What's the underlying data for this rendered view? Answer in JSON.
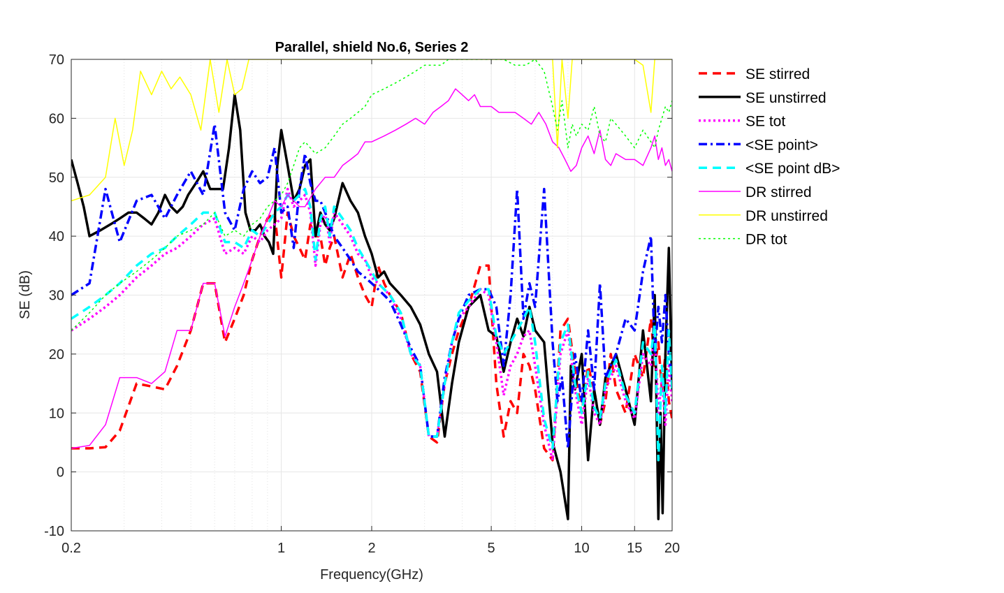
{
  "chart_data": {
    "type": "line",
    "title": "Parallel, shield No.6, Series 2",
    "xlabel": "Frequency(GHz)",
    "ylabel": "SE (dB)",
    "xscale": "log",
    "xlim": [
      0.2,
      20
    ],
    "ylim": [
      -10,
      70
    ],
    "xticks": [
      0.2,
      1,
      2,
      5,
      10,
      15,
      20
    ],
    "xtick_labels": [
      "0.2",
      "1",
      "2",
      "5",
      "10",
      "15",
      "20"
    ],
    "yticks": [
      -10,
      0,
      10,
      20,
      30,
      40,
      50,
      60,
      70
    ],
    "ytick_labels": [
      "-10",
      "0",
      "10",
      "20",
      "30",
      "40",
      "50",
      "60",
      "70"
    ],
    "grid": true,
    "legend_position": "outside-right",
    "series": [
      {
        "name": "SE stirred",
        "color": "#ff0000",
        "style": "dashed",
        "width": 3.5,
        "x": [
          0.2,
          0.23,
          0.26,
          0.29,
          0.33,
          0.37,
          0.41,
          0.45,
          0.5,
          0.55,
          0.6,
          0.65,
          0.7,
          0.75,
          0.8,
          0.85,
          0.9,
          0.95,
          1.0,
          1.05,
          1.1,
          1.15,
          1.2,
          1.25,
          1.3,
          1.35,
          1.4,
          1.45,
          1.5,
          1.6,
          1.7,
          1.8,
          1.9,
          2.0,
          2.1,
          2.2,
          2.3,
          2.5,
          2.7,
          2.9,
          3.1,
          3.3,
          3.5,
          3.7,
          3.9,
          4.2,
          4.6,
          4.9,
          5.2,
          5.5,
          5.8,
          6.1,
          6.4,
          6.7,
          7.0,
          7.5,
          8.0,
          8.5,
          9.0,
          9.5,
          10.0,
          10.5,
          11.0,
          11.5,
          12.0,
          12.5,
          13.0,
          14.0,
          15.0,
          16.0,
          17.0,
          17.5,
          18.0,
          18.5,
          19.0,
          19.5,
          20.0
        ],
        "y": [
          4,
          4,
          4.2,
          7,
          15,
          14.5,
          14,
          18,
          24,
          32,
          32,
          22,
          26,
          30,
          36,
          40,
          43,
          44,
          33,
          44,
          40,
          38,
          36,
          42,
          40,
          40,
          35,
          38,
          40,
          33,
          37,
          33,
          30,
          28,
          35,
          32,
          30,
          27,
          20,
          17,
          6,
          5,
          15,
          20,
          24,
          28,
          35,
          35,
          15,
          6,
          12,
          10,
          20,
          18,
          14,
          4,
          2,
          24,
          26,
          17,
          10,
          18,
          14,
          8,
          12,
          20,
          14,
          10,
          20,
          16,
          26,
          18,
          22,
          14,
          20,
          12,
          9
        ]
      },
      {
        "name": "SE unstirred",
        "color": "#000000",
        "style": "solid",
        "width": 3.5,
        "x": [
          0.2,
          0.21,
          0.22,
          0.23,
          0.25,
          0.27,
          0.29,
          0.31,
          0.33,
          0.35,
          0.37,
          0.39,
          0.41,
          0.43,
          0.45,
          0.47,
          0.49,
          0.52,
          0.55,
          0.58,
          0.61,
          0.64,
          0.67,
          0.7,
          0.73,
          0.76,
          0.79,
          0.82,
          0.85,
          0.88,
          0.91,
          0.94,
          0.97,
          1.0,
          1.05,
          1.1,
          1.15,
          1.2,
          1.25,
          1.3,
          1.35,
          1.4,
          1.45,
          1.5,
          1.6,
          1.7,
          1.8,
          1.9,
          2.0,
          2.1,
          2.2,
          2.3,
          2.5,
          2.7,
          2.9,
          3.1,
          3.3,
          3.5,
          3.7,
          3.9,
          4.2,
          4.6,
          4.9,
          5.2,
          5.5,
          5.8,
          6.1,
          6.4,
          6.7,
          7.0,
          7.5,
          8.0,
          8.5,
          9.0,
          9.2,
          9.5,
          10.0,
          10.5,
          11.0,
          11.5,
          12.0,
          13.0,
          14.0,
          15.0,
          16.0,
          17.0,
          17.5,
          18.0,
          18.3,
          18.6,
          19.0,
          19.5,
          20.0
        ],
        "y": [
          53,
          49,
          45,
          40,
          41,
          42,
          43,
          44,
          44,
          43,
          42,
          44,
          47,
          45,
          44,
          45,
          47,
          49,
          51,
          48,
          48,
          48,
          55,
          64,
          58,
          44,
          41,
          41,
          42,
          40,
          39,
          37,
          52,
          58,
          52,
          46,
          48,
          52,
          53,
          40,
          44,
          42,
          41,
          43,
          49,
          46,
          44,
          40,
          37,
          33,
          34,
          32,
          30,
          28,
          25,
          20,
          17,
          6,
          15,
          22,
          28,
          30,
          24,
          23,
          17,
          22,
          26,
          23,
          28,
          24,
          22,
          5,
          0,
          -8,
          18,
          14,
          20,
          2,
          14,
          8,
          16,
          20,
          14,
          8,
          24,
          12,
          30,
          -8,
          10,
          -7,
          20,
          38,
          14
        ]
      },
      {
        "name": "SE tot",
        "color": "#ff00ff",
        "style": "dotted",
        "width": 3.5,
        "x": [
          0.2,
          0.23,
          0.26,
          0.29,
          0.33,
          0.37,
          0.41,
          0.45,
          0.5,
          0.55,
          0.6,
          0.65,
          0.7,
          0.75,
          0.8,
          0.85,
          0.9,
          0.95,
          1.0,
          1.05,
          1.1,
          1.15,
          1.2,
          1.25,
          1.3,
          1.35,
          1.4,
          1.45,
          1.5,
          1.6,
          1.7,
          1.8,
          1.9,
          2.0,
          2.1,
          2.2,
          2.3,
          2.5,
          2.7,
          2.9,
          3.1,
          3.3,
          3.5,
          3.7,
          3.9,
          4.2,
          4.6,
          4.9,
          5.2,
          5.5,
          5.8,
          6.1,
          6.4,
          6.7,
          7.0,
          7.5,
          8.0,
          8.5,
          9.0,
          9.5,
          10.0,
          10.5,
          11.0,
          11.5,
          12.0,
          13.0,
          14.0,
          15.0,
          16.0,
          17.0,
          17.5,
          18.0,
          18.5,
          19.0,
          19.5,
          20.0
        ],
        "y": [
          24,
          26,
          28,
          30,
          33,
          35,
          37,
          38,
          40,
          42,
          43,
          37,
          38,
          37,
          40,
          39,
          41,
          42,
          43,
          48,
          45,
          46,
          47,
          44,
          35,
          42,
          44,
          39,
          44,
          42,
          40,
          37,
          36,
          33,
          32,
          31,
          30,
          26,
          20,
          18,
          6,
          6,
          15,
          22,
          26,
          28,
          31,
          30,
          22,
          13,
          18,
          20,
          23,
          24,
          18,
          8,
          2,
          20,
          24,
          14,
          8,
          16,
          10,
          8,
          14,
          18,
          12,
          9,
          20,
          18,
          24,
          10,
          16,
          8,
          18,
          12
        ]
      },
      {
        "name": "<SE point>",
        "color": "#0000ff",
        "style": "dashdot",
        "width": 3.5,
        "x": [
          0.2,
          0.23,
          0.26,
          0.29,
          0.33,
          0.37,
          0.41,
          0.45,
          0.5,
          0.55,
          0.6,
          0.65,
          0.7,
          0.75,
          0.8,
          0.85,
          0.9,
          0.95,
          1.0,
          1.05,
          1.1,
          1.15,
          1.2,
          1.25,
          1.3,
          1.35,
          1.4,
          1.45,
          1.5,
          1.6,
          1.7,
          1.8,
          1.9,
          2.0,
          2.1,
          2.2,
          2.3,
          2.5,
          2.7,
          2.9,
          3.1,
          3.3,
          3.5,
          3.7,
          3.9,
          4.2,
          4.6,
          4.9,
          5.2,
          5.5,
          5.8,
          6.1,
          6.4,
          6.7,
          7.0,
          7.5,
          8.0,
          8.3,
          8.6,
          9.0,
          9.5,
          10.0,
          10.5,
          11.0,
          11.5,
          12.0,
          13.0,
          14.0,
          15.0,
          16.0,
          17.0,
          17.5,
          18.0,
          18.5,
          19.0,
          19.5,
          20.0
        ],
        "y": [
          30,
          32,
          48,
          39,
          46,
          47,
          43,
          47,
          51,
          47,
          59,
          44,
          41,
          48,
          51,
          49,
          50,
          55,
          44,
          45,
          38,
          48,
          54,
          49,
          46,
          46,
          44,
          42,
          40,
          38,
          36,
          34,
          33,
          32,
          31,
          30,
          29,
          25,
          21,
          18,
          6,
          6,
          16,
          22,
          26,
          30,
          31,
          31,
          28,
          18,
          30,
          48,
          26,
          32,
          28,
          48,
          22,
          12,
          16,
          4,
          20,
          12,
          24,
          14,
          32,
          16,
          20,
          26,
          24,
          34,
          40,
          20,
          28,
          22,
          30,
          20,
          16
        ]
      },
      {
        "name": "<SE point dB>",
        "color": "#00ffff",
        "style": "dashed",
        "width": 3.5,
        "x": [
          0.2,
          0.23,
          0.26,
          0.29,
          0.33,
          0.37,
          0.41,
          0.45,
          0.5,
          0.55,
          0.6,
          0.65,
          0.7,
          0.75,
          0.8,
          0.85,
          0.9,
          0.95,
          1.0,
          1.05,
          1.1,
          1.15,
          1.2,
          1.25,
          1.3,
          1.35,
          1.4,
          1.45,
          1.5,
          1.6,
          1.7,
          1.8,
          1.9,
          2.0,
          2.1,
          2.2,
          2.3,
          2.5,
          2.7,
          2.9,
          3.1,
          3.3,
          3.5,
          3.7,
          3.9,
          4.2,
          4.6,
          4.9,
          5.2,
          5.5,
          5.8,
          6.1,
          6.4,
          6.7,
          7.0,
          7.5,
          8.0,
          8.5,
          9.0,
          9.5,
          10.0,
          10.5,
          11.0,
          11.5,
          12.0,
          13.0,
          14.0,
          15.0,
          16.0,
          17.0,
          17.5,
          18.0,
          18.5,
          19.0,
          19.5,
          20.0
        ],
        "y": [
          26,
          28,
          30,
          32,
          35,
          37,
          38,
          40,
          42,
          44,
          44,
          39,
          39,
          38,
          41,
          40,
          42,
          44,
          45,
          47,
          46,
          47,
          48,
          45,
          36,
          43,
          45,
          40,
          45,
          43,
          41,
          38,
          36,
          34,
          32,
          31,
          30,
          27,
          20,
          18,
          6,
          6,
          15,
          22,
          27,
          29,
          31,
          31,
          23,
          20,
          22,
          24,
          26,
          28,
          22,
          9,
          4,
          22,
          25,
          15,
          10,
          17,
          11,
          9,
          15,
          19,
          13,
          10,
          22,
          20,
          25,
          2,
          18,
          10,
          24,
          14
        ]
      },
      {
        "name": "DR stirred",
        "color": "#ff00ff",
        "style": "solid",
        "width": 1.5,
        "x": [
          0.2,
          0.23,
          0.26,
          0.29,
          0.33,
          0.37,
          0.41,
          0.45,
          0.5,
          0.55,
          0.6,
          0.65,
          0.7,
          0.75,
          0.8,
          0.85,
          0.9,
          0.95,
          1.0,
          1.05,
          1.1,
          1.15,
          1.2,
          1.3,
          1.4,
          1.5,
          1.6,
          1.7,
          1.8,
          1.9,
          2.0,
          2.2,
          2.4,
          2.6,
          2.8,
          3.0,
          3.2,
          3.4,
          3.6,
          3.8,
          4.0,
          4.2,
          4.4,
          4.6,
          4.8,
          5.0,
          5.3,
          5.6,
          6.0,
          6.4,
          6.8,
          7.2,
          7.6,
          8.0,
          8.4,
          8.8,
          9.2,
          9.6,
          10.0,
          10.5,
          11.0,
          11.5,
          12.0,
          12.5,
          13.0,
          14.0,
          15.0,
          16.0,
          17.0,
          17.5,
          18.0,
          18.5,
          19.0,
          19.5,
          20.0
        ],
        "y": [
          4,
          4.5,
          8,
          16,
          16,
          15,
          17,
          24,
          24,
          32,
          32,
          23,
          28,
          32,
          36,
          40,
          43,
          46,
          45,
          47,
          46,
          45,
          45,
          48,
          50,
          50,
          52,
          53,
          54,
          56,
          56,
          57,
          58,
          59,
          60,
          59,
          61,
          62,
          63,
          65,
          64,
          63,
          64,
          62,
          62,
          62,
          61,
          61,
          61,
          60,
          59,
          61,
          59,
          56,
          55,
          53,
          51,
          52,
          55,
          57,
          54,
          58,
          53,
          52,
          54,
          53,
          53,
          52,
          55,
          57,
          53,
          55,
          52,
          53,
          51
        ]
      },
      {
        "name": "DR unstirred",
        "color": "#ffff00",
        "style": "solid",
        "width": 1.5,
        "x": [
          0.2,
          0.23,
          0.26,
          0.28,
          0.3,
          0.32,
          0.34,
          0.37,
          0.4,
          0.43,
          0.46,
          0.5,
          0.54,
          0.58,
          0.62,
          0.66,
          0.7,
          0.74,
          0.78,
          0.82,
          0.86,
          0.9,
          0.95,
          1.0,
          1.05,
          1.1,
          1.15,
          1.2,
          8.0,
          8.3,
          8.6,
          9.0,
          9.3,
          9.6,
          10.0,
          10.5,
          11.0,
          12.0,
          13.0,
          14.0,
          15.0,
          16.0,
          17.0,
          17.5,
          18.0,
          18.5,
          19.0,
          19.5,
          20.0
        ],
        "y": [
          46,
          47,
          50,
          60,
          52,
          58,
          68,
          64,
          68,
          65,
          67,
          64,
          58,
          70,
          61,
          70,
          64,
          65,
          70,
          70,
          70,
          70,
          70,
          70,
          70,
          70,
          70,
          70,
          70,
          55,
          70,
          60,
          70,
          70,
          70,
          70,
          70,
          70,
          70,
          70,
          70,
          69,
          61,
          70,
          70,
          70,
          70,
          70,
          70
        ]
      },
      {
        "name": "DR tot",
        "color": "#00ff00",
        "style": "dotted",
        "width": 1.5,
        "x": [
          0.2,
          0.23,
          0.26,
          0.29,
          0.33,
          0.37,
          0.41,
          0.45,
          0.5,
          0.55,
          0.6,
          0.65,
          0.7,
          0.75,
          0.8,
          0.85,
          0.9,
          0.95,
          1.0,
          1.05,
          1.1,
          1.15,
          1.2,
          1.3,
          1.4,
          1.5,
          1.6,
          1.7,
          1.8,
          1.9,
          2.0,
          2.2,
          2.4,
          2.6,
          2.8,
          3.0,
          3.2,
          3.4,
          3.6,
          3.8,
          4.0,
          4.5,
          5.0,
          5.5,
          6.0,
          6.5,
          7.0,
          7.5,
          8.0,
          8.3,
          8.6,
          9.0,
          9.3,
          9.6,
          10.0,
          10.5,
          11.0,
          11.5,
          12.0,
          12.5,
          13.0,
          14.0,
          15.0,
          16.0,
          17.0,
          17.5,
          18.0,
          18.5,
          19.0,
          19.5,
          20.0
        ],
        "y": [
          24,
          27,
          30,
          32,
          34,
          36,
          38,
          40,
          41,
          42,
          44,
          40,
          41,
          40,
          42,
          43,
          45,
          46,
          47,
          49,
          52,
          55,
          56,
          54,
          55,
          57,
          59,
          60,
          61,
          62,
          64,
          65,
          66,
          67,
          68,
          69,
          69,
          69,
          70,
          70,
          70,
          70,
          70,
          70,
          69,
          69,
          70,
          68,
          62,
          58,
          63,
          55,
          59,
          57,
          59,
          58,
          62,
          57,
          56,
          60,
          59,
          57,
          55,
          58,
          56,
          55,
          58,
          60,
          62,
          61,
          63
        ]
      }
    ]
  }
}
